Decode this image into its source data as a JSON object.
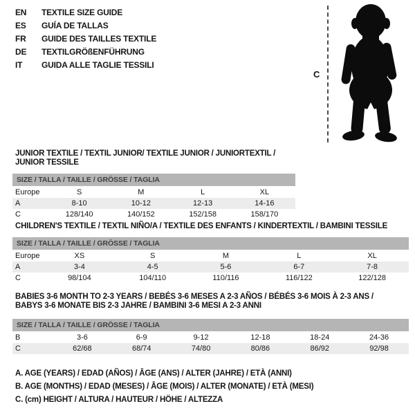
{
  "language_list": [
    {
      "code": "EN",
      "title": "TEXTILE SIZE GUIDE"
    },
    {
      "code": "ES",
      "title": "GUÍA DE TALLAS"
    },
    {
      "code": "FR",
      "title": "GUIDE DES TAILLES TEXTILE"
    },
    {
      "code": "DE",
      "title": "TEXTILGRÖßENFÜHRUNG"
    },
    {
      "code": "IT",
      "title": "GUIDA ALLE TAGLIE TESSILI"
    }
  ],
  "figure": {
    "measure_label": "C"
  },
  "tables": [
    {
      "title_lines": [
        "JUNIOR TEXTILE / TEXTIL JUNIOR/ TEXTILE JUNIOR / JUNIORTEXTIL / JUNIOR TESSILE"
      ],
      "size_header": "SIZE / TALLA / TAILLE / GRÖSSE / TAGLIA",
      "rows": [
        {
          "label": "Europe",
          "cells": [
            "S",
            "M",
            "L",
            "XL"
          ],
          "shade": false
        },
        {
          "label": "A",
          "cells": [
            "8-10",
            "10-12",
            "12-13",
            "14-16"
          ],
          "shade": true
        },
        {
          "label": "C",
          "cells": [
            "128/140",
            "140/152",
            "152/158",
            "158/170"
          ],
          "shade": false
        }
      ]
    },
    {
      "title_lines": [
        "CHILDREN'S TEXTILE / TEXTIL NIÑO/A / TEXTILE DES ENFANTS / KINDERTEXTIL / BAMBINI TESSILE"
      ],
      "size_header": "SIZE / TALLA / TAILLE / GRÖSSE / TAGLIA",
      "rows": [
        {
          "label": "Europe",
          "cells": [
            "XS",
            "S",
            "M",
            "L",
            "XL"
          ],
          "shade": false
        },
        {
          "label": "A",
          "cells": [
            "3-4",
            "4-5",
            "5-6",
            "6-7",
            "7-8"
          ],
          "shade": true
        },
        {
          "label": "C",
          "cells": [
            "98/104",
            "104/110",
            "110/116",
            "116/122",
            "122/128"
          ],
          "shade": false
        }
      ]
    },
    {
      "title_lines": [
        "BABIES 3-6 MONTH TO 2-3 YEARS / BEBÉS 3-6 MESES A 2-3 AÑOS / BÉBÉS 3-6 MOIS À 2-3 ANS /",
        "BABYS 3-6 MONATE BIS 2-3 JAHRE / BAMBINI 3-6 MESI A 2-3 ANNI"
      ],
      "size_header": "SIZE / TALLA / TAILLE / GRÖSSE / TAGLIA",
      "rows": [
        {
          "label": "B",
          "cells": [
            "3-6",
            "6-9",
            "9-12",
            "12-18",
            "18-24",
            "24-36"
          ],
          "shade": false
        },
        {
          "label": "C",
          "cells": [
            "62/68",
            "68/74",
            "74/80",
            "80/86",
            "86/92",
            "92/98"
          ],
          "shade": true
        }
      ]
    }
  ],
  "footnotes": [
    "A. AGE (YEARS) / EDAD (AÑOS) / ÂGE (ANS) / ALTER (JAHRE) / ETÀ (ANNI)",
    "B. AGE (MONTHS) / EDAD (MESES) / ÂGE (MOIS) / ALTER (MONATE) / ETÀ (MESI)",
    "C. (cm) HEIGHT / ALTURA / HAUTEUR / HÖHE / ALTEZZA"
  ],
  "colors": {
    "header_bar_bg": "#b5b5b5",
    "header_bar_text": "#3f3f3f",
    "row_shade_bg": "#ececec",
    "text": "#161616",
    "silhouette": "#0c0c0c"
  }
}
